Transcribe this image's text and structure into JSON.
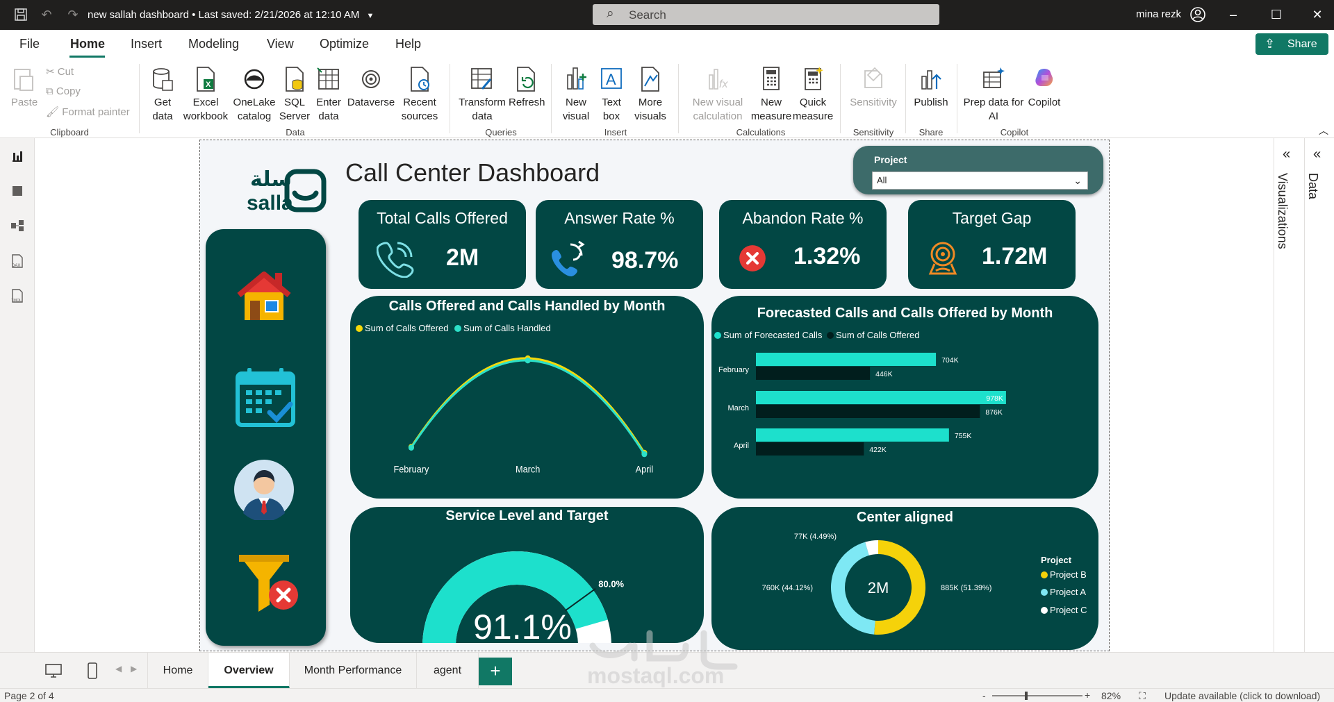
{
  "app": {
    "doc_title": "new sallah dashboard",
    "last_saved": "Last saved: 2/21/2026 at 12:10 AM",
    "search_placeholder": "Search",
    "user_name": "mina rezk"
  },
  "menu": {
    "items": [
      "File",
      "Home",
      "Insert",
      "Modeling",
      "View",
      "Optimize",
      "Help"
    ],
    "share_label": "Share"
  },
  "ribbon": {
    "clipboard": {
      "paste": "Paste",
      "cut": "Cut",
      "copy": "Copy",
      "format_painter": "Format painter",
      "label": "Clipboard"
    },
    "data": {
      "get_data": "Get data",
      "excel": "Excel workbook",
      "onelake": "OneLake catalog",
      "sql": "SQL Server",
      "enter": "Enter data",
      "dataverse": "Dataverse",
      "recent": "Recent sources",
      "label": "Data"
    },
    "queries": {
      "transform": "Transform data",
      "refresh": "Refresh",
      "label": "Queries"
    },
    "insert": {
      "new_visual": "New visual",
      "text_box": "Text box",
      "more_visuals": "More visuals",
      "label": "Insert"
    },
    "calculations": {
      "new_visual_calc": "New visual calculation",
      "new_measure": "New measure",
      "quick_measure": "Quick measure",
      "label": "Calculations"
    },
    "sensitivity": {
      "sensitivity": "Sensitivity",
      "label": "Sensitivity"
    },
    "share": {
      "publish": "Publish",
      "label": "Share"
    },
    "copilot": {
      "prep": "Prep data for AI",
      "copilot": "Copilot",
      "label": "Copilot"
    }
  },
  "panes": {
    "visualizations": "Visualizations",
    "data": "Data"
  },
  "tabs": [
    "Home",
    "Overview",
    "Month Performance",
    "agent"
  ],
  "status": {
    "page": "Page 2 of 4",
    "zoom": "82%",
    "update": "Update available (click to download)"
  },
  "report": {
    "logo_arabic": "سلة",
    "logo_latin": "salla",
    "title": "Call Center Dashboard",
    "slicer": {
      "label": "Project",
      "value": "All"
    },
    "kpis": [
      {
        "title": "Total Calls Offered",
        "value": "2M"
      },
      {
        "title": "Answer Rate %",
        "value": "98.7%"
      },
      {
        "title": "Abandon Rate %",
        "value": "1.32%"
      },
      {
        "title": "Target Gap",
        "value": "1.72M"
      }
    ],
    "line_chart_title": "Calls Offered and Calls Handled by Month",
    "bar_chart_title": "Forecasted Calls and Calls Offered by Month",
    "gauge_title": "Service Level and Target",
    "donut_title": "Center aligned"
  },
  "chart_data": [
    {
      "type": "line",
      "title": "Calls Offered and Calls Handled by Month",
      "categories": [
        "February",
        "March",
        "April"
      ],
      "series": [
        {
          "name": "Sum of Calls Offered",
          "color": "#f5d90a",
          "values": [
            130000,
            1360000,
            50000
          ]
        },
        {
          "name": "Sum of Calls Handled",
          "color": "#2de0c8",
          "values": [
            120000,
            1330000,
            30000
          ]
        }
      ],
      "ylim": [
        0,
        1500000
      ]
    },
    {
      "type": "bar",
      "orientation": "horizontal",
      "title": "Forecasted Calls and Calls Offered by Month",
      "categories": [
        "February",
        "March",
        "April"
      ],
      "series": [
        {
          "name": "Sum of Forecasted Calls",
          "color": "#1de0cc",
          "values": [
            704,
            978,
            755
          ],
          "labels": [
            "704K",
            "978K",
            "755K"
          ]
        },
        {
          "name": "Sum of Calls Offered",
          "color": "#011e1d",
          "values": [
            446,
            876,
            422
          ],
          "labels": [
            "446K",
            "876K",
            "422K"
          ]
        }
      ],
      "unit": "K",
      "xlim": [
        0,
        1000
      ]
    },
    {
      "type": "gauge",
      "title": "Service Level and Target",
      "value": 91.1,
      "value_label": "91.1%",
      "target": 80.0,
      "target_label": "80.0%",
      "min": 0,
      "max": 100,
      "color": "#1de0cc"
    },
    {
      "type": "pie",
      "variant": "donut",
      "title": "Center aligned",
      "center_label": "2M",
      "legend_title": "Project",
      "slices": [
        {
          "name": "Project B",
          "value": 885,
          "label": "885K (51.39%)",
          "color": "#f5d20a"
        },
        {
          "name": "Project A",
          "value": 760,
          "label": "760K (44.12%)",
          "color": "#7ee8f4"
        },
        {
          "name": "Project C",
          "value": 77,
          "label": "77K (4.49%)",
          "color": "#ffffff"
        }
      ]
    }
  ]
}
